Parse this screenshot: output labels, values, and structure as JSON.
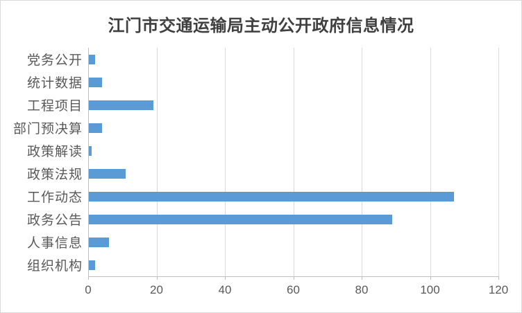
{
  "chart": {
    "title": "江门市交通运输局主动公开政府信息情况"
  },
  "chart_data": {
    "type": "bar",
    "orientation": "horizontal",
    "title": "江门市交通运输局主动公开政府信息情况",
    "categories": [
      "党务公开",
      "统计数据",
      "工程项目",
      "部门预决算",
      "政策解读",
      "政策法规",
      "工作动态",
      "政务公告",
      "人事信息",
      "组织机构"
    ],
    "values": [
      2,
      4,
      19,
      4,
      1,
      11,
      107,
      89,
      6,
      2
    ],
    "xlabel": "",
    "ylabel": "",
    "xlim": [
      0,
      120
    ],
    "xticks": [
      0,
      20,
      40,
      60,
      80,
      100,
      120
    ],
    "grid": true,
    "legend": false,
    "colors": {
      "bar": "#5b9bd5",
      "gridline": "#d9d9d9",
      "axis_line": "#bfbfbf",
      "tick_label": "#595959",
      "title": "#3f3f3f",
      "background": "#ffffff",
      "border": "#d9d9d9"
    }
  }
}
